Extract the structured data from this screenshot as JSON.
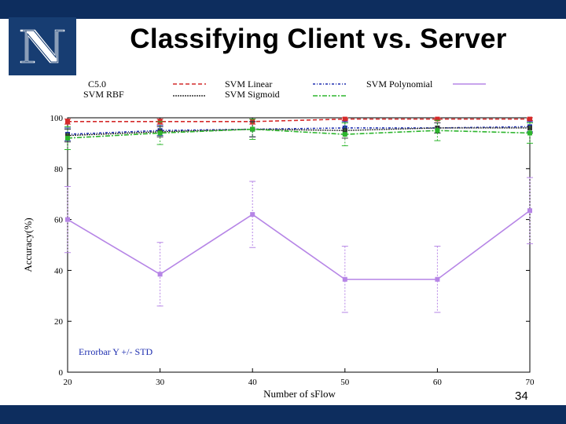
{
  "slide": {
    "title": "Classifying Client vs. Server",
    "page_number": "34",
    "logo_letter": "N"
  },
  "colors": {
    "bar": "#0d2d5e",
    "logo_bg": "#173d72"
  },
  "chart_data": {
    "type": "line",
    "title": "",
    "xlabel": "Number of sFlow",
    "ylabel": "Accuracy(%)",
    "x": [
      20,
      30,
      40,
      50,
      60,
      70
    ],
    "xlim": [
      20,
      70
    ],
    "ylim": [
      0,
      100
    ],
    "yticks": [
      0,
      20,
      40,
      60,
      80,
      100
    ],
    "xticks": [
      20,
      30,
      40,
      50,
      60,
      70
    ],
    "annotation": "Errorbar Y +/- STD",
    "series": [
      {
        "name": "C5.0",
        "color": "#d42a2a",
        "dash": "5,3",
        "width": 1.6,
        "values": [
          98.5,
          98.5,
          98.5,
          99.5,
          99.5,
          99.5
        ],
        "std": [
          1.0,
          1.0,
          1.0,
          0.5,
          0.5,
          0.5
        ]
      },
      {
        "name": "SVM Linear",
        "color": "#1f2fb0",
        "dash": "3,2,1,2",
        "width": 1.6,
        "values": [
          93.5,
          95,
          95.5,
          96,
          96,
          96.5
        ],
        "std": [
          2.5,
          2.0,
          3.0,
          2.5,
          2.0,
          2.0
        ]
      },
      {
        "name": "SVM Polynomial",
        "color": "#b685e6",
        "dash": "",
        "width": 1.6,
        "values": [
          60,
          38.5,
          62,
          36.5,
          36.5,
          63.5
        ],
        "std": [
          13,
          12.5,
          13,
          13,
          13,
          13
        ]
      },
      {
        "name": "SVM RBF",
        "color": "#333333",
        "dash": "2,1",
        "width": 1.4,
        "values": [
          93,
          94.5,
          95.5,
          95,
          96,
          96
        ],
        "std": [
          2.5,
          2.0,
          3.0,
          3.0,
          2.0,
          2.0
        ]
      },
      {
        "name": "SVM Sigmoid",
        "color": "#2db52d",
        "dash": "6,2,2,2",
        "width": 1.6,
        "values": [
          92,
          94,
          95.5,
          93.5,
          95,
          94
        ],
        "std": [
          4.5,
          4.5,
          4.0,
          4.5,
          4.0,
          4.0
        ]
      }
    ]
  }
}
